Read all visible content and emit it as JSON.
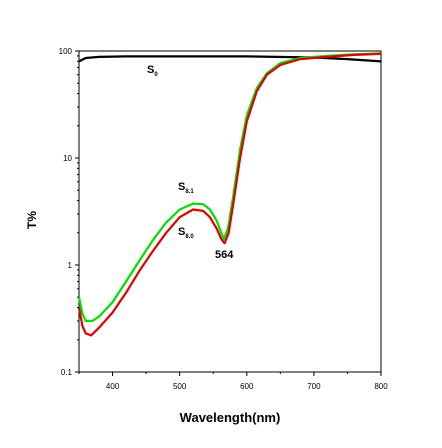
{
  "chart_data": {
    "type": "line",
    "title": "",
    "xlabel": "Wavelength(nm)",
    "ylabel": "T%",
    "xlim": [
      350,
      800
    ],
    "ylim": [
      0.1,
      100
    ],
    "y_scale": "log",
    "x_ticks": [
      400,
      500,
      600,
      700,
      800
    ],
    "x_tick_labels": [
      "400",
      "500",
      "600",
      "700",
      "800"
    ],
    "y_ticks": [
      0.1,
      1,
      10,
      100
    ],
    "y_tick_labels": [
      "0.1",
      "1",
      "10",
      "100"
    ],
    "grid": false,
    "legend": "none",
    "series": [
      {
        "label_main": "S",
        "label_sub": "0",
        "color": "#000000",
        "points": [
          [
            350,
            80
          ],
          [
            360,
            86
          ],
          [
            380,
            88
          ],
          [
            420,
            89
          ],
          [
            500,
            89
          ],
          [
            600,
            89
          ],
          [
            700,
            87
          ],
          [
            750,
            84
          ],
          [
            800,
            80
          ]
        ]
      },
      {
        "label_main": "S",
        "label_sub": "8.1",
        "color": "#00e000",
        "points": [
          [
            350,
            0.5
          ],
          [
            355,
            0.35
          ],
          [
            360,
            0.3
          ],
          [
            370,
            0.3
          ],
          [
            380,
            0.33
          ],
          [
            400,
            0.45
          ],
          [
            420,
            0.7
          ],
          [
            440,
            1.1
          ],
          [
            460,
            1.7
          ],
          [
            480,
            2.5
          ],
          [
            500,
            3.3
          ],
          [
            520,
            3.75
          ],
          [
            535,
            3.7
          ],
          [
            545,
            3.3
          ],
          [
            555,
            2.6
          ],
          [
            562,
            2.0
          ],
          [
            566,
            1.75
          ],
          [
            572,
            2.2
          ],
          [
            580,
            4.5
          ],
          [
            590,
            12
          ],
          [
            600,
            25
          ],
          [
            615,
            45
          ],
          [
            630,
            62
          ],
          [
            650,
            77
          ],
          [
            680,
            86
          ],
          [
            720,
            90
          ],
          [
            760,
            93
          ],
          [
            800,
            95
          ]
        ]
      },
      {
        "label_main": "S",
        "label_sub": "8.0",
        "color": "#e00000",
        "points": [
          [
            350,
            0.4
          ],
          [
            355,
            0.27
          ],
          [
            360,
            0.23
          ],
          [
            368,
            0.22
          ],
          [
            380,
            0.26
          ],
          [
            400,
            0.36
          ],
          [
            420,
            0.55
          ],
          [
            440,
            0.88
          ],
          [
            460,
            1.35
          ],
          [
            480,
            2.0
          ],
          [
            500,
            2.8
          ],
          [
            520,
            3.3
          ],
          [
            535,
            3.2
          ],
          [
            545,
            2.8
          ],
          [
            555,
            2.2
          ],
          [
            562,
            1.75
          ],
          [
            567,
            1.6
          ],
          [
            573,
            2.0
          ],
          [
            580,
            3.8
          ],
          [
            590,
            10
          ],
          [
            600,
            22
          ],
          [
            615,
            42
          ],
          [
            630,
            60
          ],
          [
            650,
            74
          ],
          [
            680,
            84
          ],
          [
            720,
            88
          ],
          [
            760,
            92
          ],
          [
            800,
            94
          ]
        ]
      }
    ],
    "annotations": [
      {
        "text": "564",
        "x": 564,
        "y": 1.0
      }
    ]
  }
}
